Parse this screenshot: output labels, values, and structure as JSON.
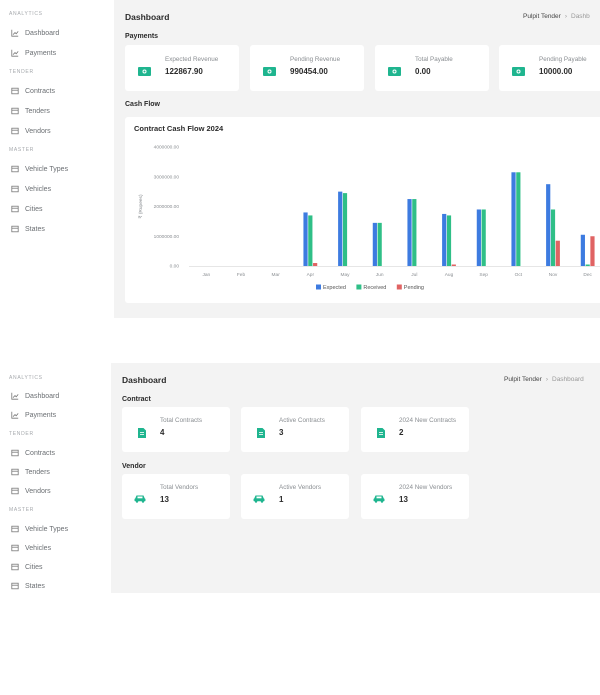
{
  "colors": {
    "accent": "#1fb58f",
    "expected": "#3d7be0",
    "received": "#2fbf87",
    "pending": "#e06363"
  },
  "sidebar": {
    "sections": {
      "analytics": "ANALYTICS",
      "tender": "TENDER",
      "master": "MASTER"
    },
    "items": {
      "dashboard": "Dashboard",
      "payments": "Payments",
      "contracts": "Contracts",
      "tenders": "Tenders",
      "vendors": "Vendors",
      "vehicle_types": "Vehicle Types",
      "vehicles": "Vehicles",
      "cities": "Cities",
      "states": "States"
    }
  },
  "header": {
    "title": "Dashboard",
    "breadcrumb_root": "Pulpit Tender",
    "breadcrumb_current_partial": "Dashb",
    "breadcrumb_current": "Dashboard"
  },
  "payments": {
    "title": "Payments",
    "cards": [
      {
        "label": "Expected Revenue",
        "value": "122867.90",
        "icon": "money-icon"
      },
      {
        "label": "Pending Revenue",
        "value": "990454.00",
        "icon": "money-icon"
      },
      {
        "label": "Total Payable",
        "value": "0.00",
        "icon": "money-icon"
      },
      {
        "label": "Pending Payable",
        "value": "10000.00",
        "icon": "money-icon"
      }
    ]
  },
  "cashflow": {
    "title": "Cash Flow"
  },
  "contract": {
    "title": "Contract",
    "cards": [
      {
        "label": "Total Contracts",
        "value": "4",
        "icon": "document-icon"
      },
      {
        "label": "Active Contracts",
        "value": "3",
        "icon": "document-icon"
      },
      {
        "label": "2024 New Contracts",
        "value": "2",
        "icon": "document-icon"
      }
    ]
  },
  "vendor": {
    "title": "Vendor",
    "cards": [
      {
        "label": "Total Vendors",
        "value": "13",
        "icon": "car-icon"
      },
      {
        "label": "Active Vendors",
        "value": "1",
        "icon": "car-icon"
      },
      {
        "label": "2024 New Vendors",
        "value": "13",
        "icon": "car-icon"
      }
    ]
  },
  "chart_data": {
    "type": "bar",
    "title": "Contract Cash Flow 2024",
    "xlabel": "",
    "ylabel": "₹ (Rupees)",
    "ylim": [
      0,
      4000000
    ],
    "yticks": [
      "0.00",
      "1000000.00",
      "2000000.00",
      "3000000.00",
      "4000000.00"
    ],
    "categories": [
      "Jan",
      "Feb",
      "Mar",
      "Apr",
      "May",
      "Jun",
      "Jul",
      "Aug",
      "Sep",
      "Oct",
      "Nov",
      "Dec"
    ],
    "series": [
      {
        "name": "Expected",
        "values": [
          0,
          0,
          0,
          1800000,
          2500000,
          1450000,
          2250000,
          1750000,
          1900000,
          3150000,
          2750000,
          1050000
        ]
      },
      {
        "name": "Received",
        "values": [
          0,
          0,
          0,
          1700000,
          2450000,
          1450000,
          2250000,
          1700000,
          1900000,
          3150000,
          1900000,
          50000
        ]
      },
      {
        "name": "Pending",
        "values": [
          0,
          0,
          0,
          100000,
          0,
          0,
          0,
          50000,
          0,
          0,
          850000,
          1000000
        ]
      }
    ],
    "legend": "bottom"
  }
}
